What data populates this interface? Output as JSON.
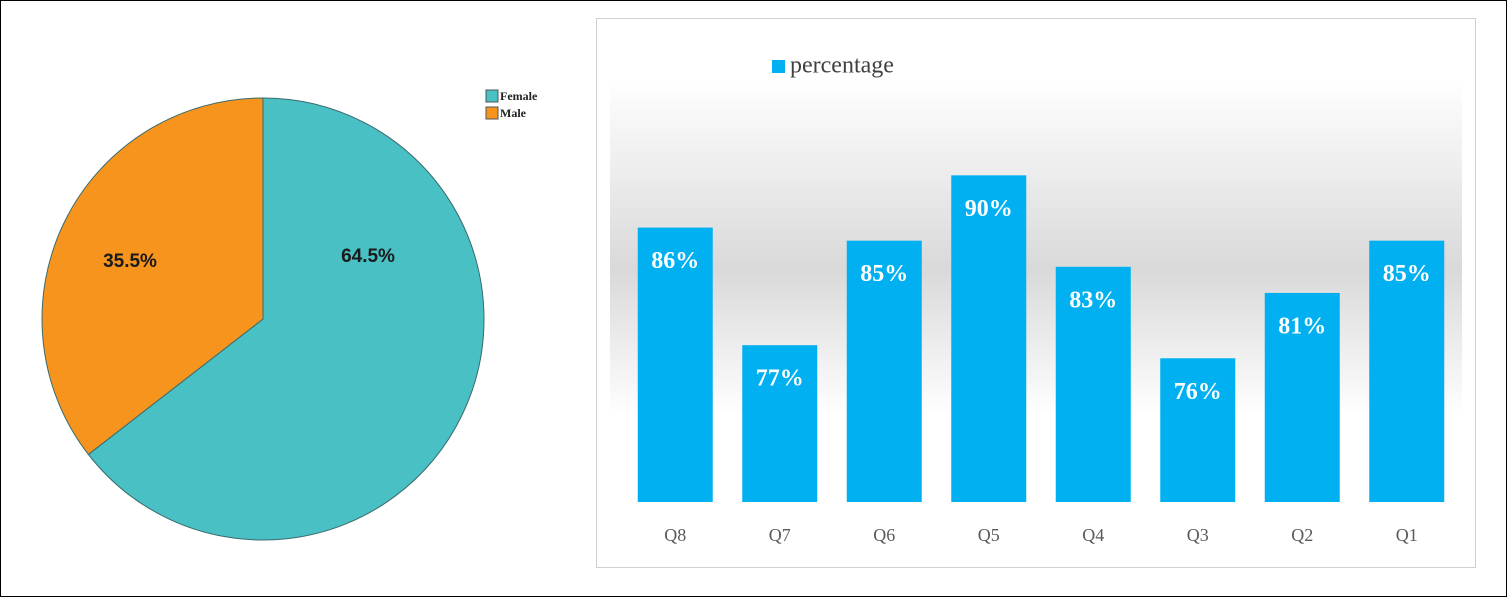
{
  "chart_data": [
    {
      "type": "pie",
      "categories": [
        "Female",
        "Male"
      ],
      "values": [
        64.5,
        35.5
      ],
      "value_labels": [
        "64.5%",
        "35.5%"
      ],
      "colors": [
        "#48c0c4",
        "#f7941d"
      ],
      "legend": "top-right"
    },
    {
      "type": "bar",
      "categories": [
        "Q8",
        "Q7",
        "Q6",
        "Q5",
        "Q4",
        "Q3",
        "Q2",
        "Q1"
      ],
      "series": [
        {
          "name": "percentage",
          "color": "#00b0f0",
          "values": [
            86,
            77,
            85,
            90,
            83,
            76,
            81,
            85
          ],
          "value_labels": [
            "86%",
            "77%",
            "85%",
            "90%",
            "83%",
            "76%",
            "81%",
            "85%"
          ]
        }
      ],
      "ylim": [
        65,
        95
      ],
      "legend": "top"
    }
  ]
}
